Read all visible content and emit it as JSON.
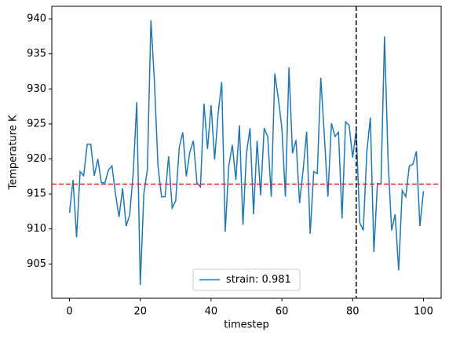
{
  "chart_data": {
    "type": "line",
    "xlabel": "timestep",
    "ylabel": "Temperature K",
    "x": [
      0,
      1,
      2,
      3,
      4,
      5,
      6,
      7,
      8,
      9,
      10,
      11,
      12,
      13,
      14,
      15,
      16,
      17,
      18,
      19,
      20,
      21,
      22,
      23,
      24,
      25,
      26,
      27,
      28,
      29,
      30,
      31,
      32,
      33,
      34,
      35,
      36,
      37,
      38,
      39,
      40,
      41,
      42,
      43,
      44,
      45,
      46,
      47,
      48,
      49,
      50,
      51,
      52,
      53,
      54,
      55,
      56,
      57,
      58,
      59,
      60,
      61,
      62,
      63,
      64,
      65,
      66,
      67,
      68,
      69,
      70,
      71,
      72,
      73,
      74,
      75,
      76,
      77,
      78,
      79,
      80,
      81,
      82,
      83,
      84,
      85,
      86,
      87,
      88,
      89,
      90,
      91,
      92,
      93,
      94,
      95,
      96,
      97,
      98,
      99,
      100
    ],
    "series": [
      {
        "name": "strain: 0.981",
        "color": "#1f77b4",
        "values": [
          912.3,
          917,
          908.8,
          918.2,
          917.6,
          922.1,
          922.1,
          917.6,
          920,
          916.6,
          916.6,
          918.4,
          919,
          915,
          911.7,
          915.8,
          910.4,
          912,
          918,
          928.1,
          902,
          915,
          918.5,
          939.8,
          931,
          919,
          914.6,
          914.6,
          920.4,
          913,
          914,
          921.6,
          923.8,
          917.5,
          921,
          922.6,
          916.6,
          916,
          927.9,
          921.4,
          927.7,
          919.9,
          926.5,
          931,
          909.6,
          919,
          922,
          917,
          924.8,
          910.6,
          920.8,
          924.4,
          912.1,
          922.6,
          914.8,
          924.4,
          923.2,
          914.6,
          932.2,
          928.6,
          924.4,
          914.6,
          933.1,
          920.8,
          922.7,
          913.7,
          918.4,
          923.9,
          909.3,
          918.2,
          917.9,
          931.6,
          923.3,
          914.6,
          925.1,
          923.2,
          923.8,
          911.5,
          925.3,
          924.8,
          920.2,
          924.1,
          910.9,
          909.8,
          921,
          925.9,
          906.7,
          916.5,
          916.4,
          937.5,
          920,
          909.8,
          912.1,
          904.1,
          915.5,
          914.6,
          919,
          919.2,
          921.1,
          910.4,
          915.4
        ]
      }
    ],
    "hline": {
      "value": 916.4,
      "color": "#d62728"
    },
    "vline": {
      "value": 81,
      "color": "#000000"
    },
    "xlim": [
      -5,
      105
    ],
    "xticks": [
      0,
      20,
      40,
      60,
      80,
      100
    ],
    "ylim": [
      900.1,
      941.8
    ],
    "yticks": [
      905,
      910,
      915,
      920,
      925,
      930,
      935,
      940
    ],
    "legend": "lower center"
  }
}
